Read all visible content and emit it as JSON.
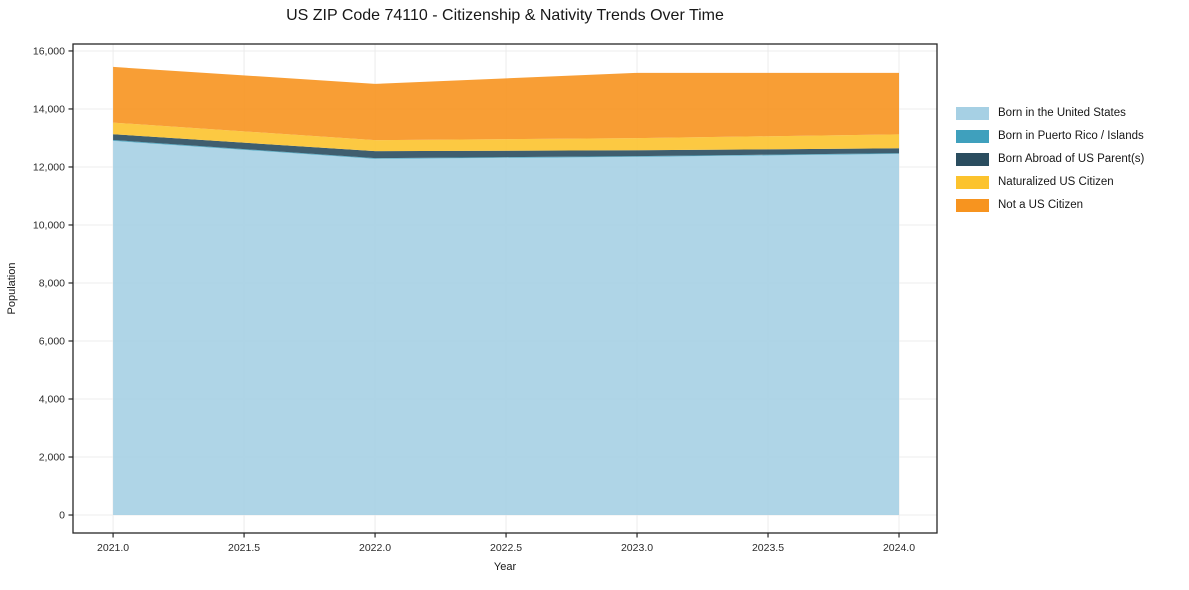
{
  "chart_data": {
    "type": "area",
    "stacked": true,
    "title": "US ZIP Code 74110 - Citizenship & Nativity Trends Over Time",
    "xlabel": "Year",
    "ylabel": "Population",
    "x": [
      2021,
      2022,
      2023,
      2024
    ],
    "series": [
      {
        "name": "Born in the United States",
        "color": "#a6d0e4",
        "values": [
          12900,
          12280,
          12350,
          12450
        ]
      },
      {
        "name": "Born in Puerto Rico / Islands",
        "color": "#3fa0bd",
        "values": [
          30,
          25,
          25,
          25
        ]
      },
      {
        "name": "Born Abroad of US Parent(s)",
        "color": "#2a4d5f",
        "values": [
          200,
          240,
          200,
          170
        ]
      },
      {
        "name": "Naturalized US Citizen",
        "color": "#fcc32d",
        "values": [
          400,
          380,
          420,
          480
        ]
      },
      {
        "name": "Not a US Citizen",
        "color": "#f7941f",
        "values": [
          1920,
          1940,
          2250,
          2120
        ]
      }
    ],
    "stack_totals": [
      15450,
      14865,
      15245,
      15245
    ],
    "x_tick_labels": [
      "2021.0",
      "2021.5",
      "2022.0",
      "2022.5",
      "2023.0",
      "2023.5",
      "2024.0"
    ],
    "x_tick_values": [
      2021,
      2021.5,
      2022,
      2022.5,
      2023,
      2023.5,
      2024
    ],
    "y_tick_labels": [
      "0",
      "2,000",
      "4,000",
      "6,000",
      "8,000",
      "10,000",
      "12,000",
      "14,000",
      "16,000"
    ],
    "y_tick_values": [
      0,
      2000,
      4000,
      6000,
      8000,
      10000,
      12000,
      14000,
      16000
    ],
    "xlim": [
      2020.847,
      2024.145
    ],
    "ylim": [
      -620,
      16240
    ],
    "grid": true,
    "grid_color": "#ececec",
    "background": "#ffffff",
    "spine_color": "#262626",
    "legend_position": "right",
    "fill_opacity": 0.9
  }
}
